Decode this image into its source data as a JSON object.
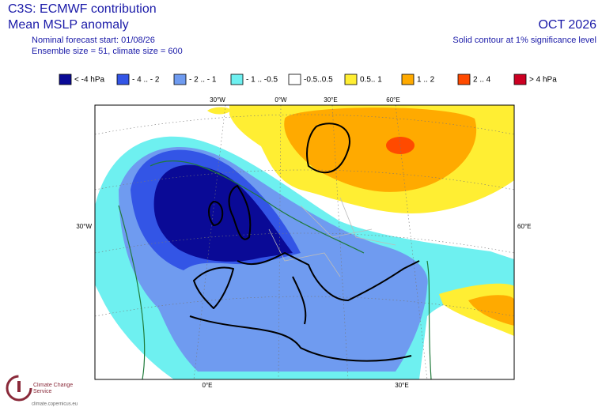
{
  "header": {
    "title": "C3S: ECMWF contribution",
    "subtitle": "Mean MSLP anomaly",
    "forecast_start": "Nominal forecast start: 01/08/26",
    "ensemble": "Ensemble size = 51, climate size = 600"
  },
  "header_right": {
    "month": "OCT 2026",
    "note": "Solid contour at 1% significance level"
  },
  "legend": {
    "items": [
      {
        "label": "< -4 hPa",
        "color": "#0a0a96"
      },
      {
        "label": "- 4 .. - 2",
        "color": "#3355e6"
      },
      {
        "label": "- 2 .. - 1",
        "color": "#6f9bf0"
      },
      {
        "label": "- 1 .. -0.5",
        "color": "#6ef0f0"
      },
      {
        "label": "-0.5..0.5",
        "color": "#ffffff"
      },
      {
        "label": "0.5.. 1",
        "color": "#ffee33"
      },
      {
        "label": "1 .. 2",
        "color": "#ffaa00"
      },
      {
        "label": "2 .. 4",
        "color": "#ff4a00"
      },
      {
        "label": "> 4 hPa",
        "color": "#cc0022"
      }
    ]
  },
  "graticule": {
    "top": [
      "30°W",
      "0°W",
      "30°E",
      "60°E"
    ],
    "left": "30°W",
    "right": "60°E",
    "bottom": [
      "0°E",
      "30°E"
    ]
  },
  "logo": {
    "name": "Climate Change Service",
    "url": "climate.copernicus.eu"
  }
}
